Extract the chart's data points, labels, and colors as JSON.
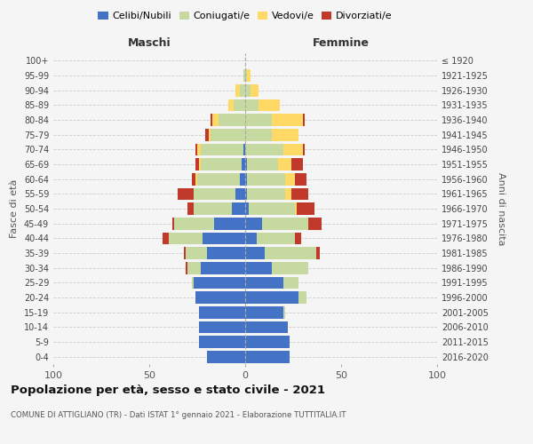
{
  "age_groups": [
    "0-4",
    "5-9",
    "10-14",
    "15-19",
    "20-24",
    "25-29",
    "30-34",
    "35-39",
    "40-44",
    "45-49",
    "50-54",
    "55-59",
    "60-64",
    "65-69",
    "70-74",
    "75-79",
    "80-84",
    "85-89",
    "90-94",
    "95-99",
    "100+"
  ],
  "birth_years": [
    "2016-2020",
    "2011-2015",
    "2006-2010",
    "2001-2005",
    "1996-2000",
    "1991-1995",
    "1986-1990",
    "1981-1985",
    "1976-1980",
    "1971-1975",
    "1966-1970",
    "1961-1965",
    "1956-1960",
    "1951-1955",
    "1946-1950",
    "1941-1945",
    "1936-1940",
    "1931-1935",
    "1926-1930",
    "1921-1925",
    "≤ 1920"
  ],
  "male": {
    "celibi": [
      20,
      24,
      24,
      24,
      26,
      27,
      23,
      20,
      22,
      16,
      7,
      5,
      3,
      2,
      1,
      0,
      0,
      0,
      0,
      0,
      0
    ],
    "coniugati": [
      0,
      0,
      0,
      0,
      0,
      1,
      7,
      11,
      18,
      21,
      20,
      22,
      22,
      21,
      22,
      18,
      14,
      6,
      3,
      1,
      0
    ],
    "vedovi": [
      0,
      0,
      0,
      0,
      0,
      0,
      0,
      0,
      0,
      0,
      0,
      0,
      1,
      1,
      2,
      1,
      3,
      3,
      2,
      0,
      0
    ],
    "divorziati": [
      0,
      0,
      0,
      0,
      0,
      0,
      1,
      1,
      3,
      1,
      3,
      8,
      2,
      2,
      1,
      2,
      1,
      0,
      0,
      0,
      0
    ]
  },
  "female": {
    "nubili": [
      23,
      23,
      22,
      20,
      28,
      20,
      14,
      10,
      6,
      9,
      2,
      1,
      1,
      1,
      0,
      0,
      0,
      0,
      0,
      0,
      0
    ],
    "coniugate": [
      0,
      0,
      0,
      1,
      4,
      8,
      19,
      27,
      20,
      24,
      24,
      20,
      20,
      16,
      20,
      14,
      14,
      7,
      3,
      1,
      0
    ],
    "vedove": [
      0,
      0,
      0,
      0,
      0,
      0,
      0,
      0,
      0,
      0,
      1,
      3,
      5,
      7,
      10,
      14,
      16,
      11,
      4,
      2,
      0
    ],
    "divorziate": [
      0,
      0,
      0,
      0,
      0,
      0,
      0,
      2,
      3,
      7,
      9,
      9,
      6,
      6,
      1,
      0,
      1,
      0,
      0,
      0,
      0
    ]
  },
  "colors": {
    "celibi": "#4472c4",
    "coniugati": "#c5d9a0",
    "vedovi": "#ffd966",
    "divorziati": "#c0392b"
  },
  "title": "Popolazione per età, sesso e stato civile - 2021",
  "subtitle": "COMUNE DI ATTIGLIANO (TR) - Dati ISTAT 1° gennaio 2021 - Elaborazione TUTTITALIA.IT",
  "xlabel_left": "Maschi",
  "xlabel_right": "Femmine",
  "ylabel_left": "Fasce di età",
  "ylabel_right": "Anni di nascita",
  "xlim": 100,
  "background_color": "#f5f5f5",
  "grid_color": "#cccccc",
  "legend_labels": [
    "Celibi/Nubili",
    "Coniugati/e",
    "Vedovi/e",
    "Divorziati/e"
  ]
}
